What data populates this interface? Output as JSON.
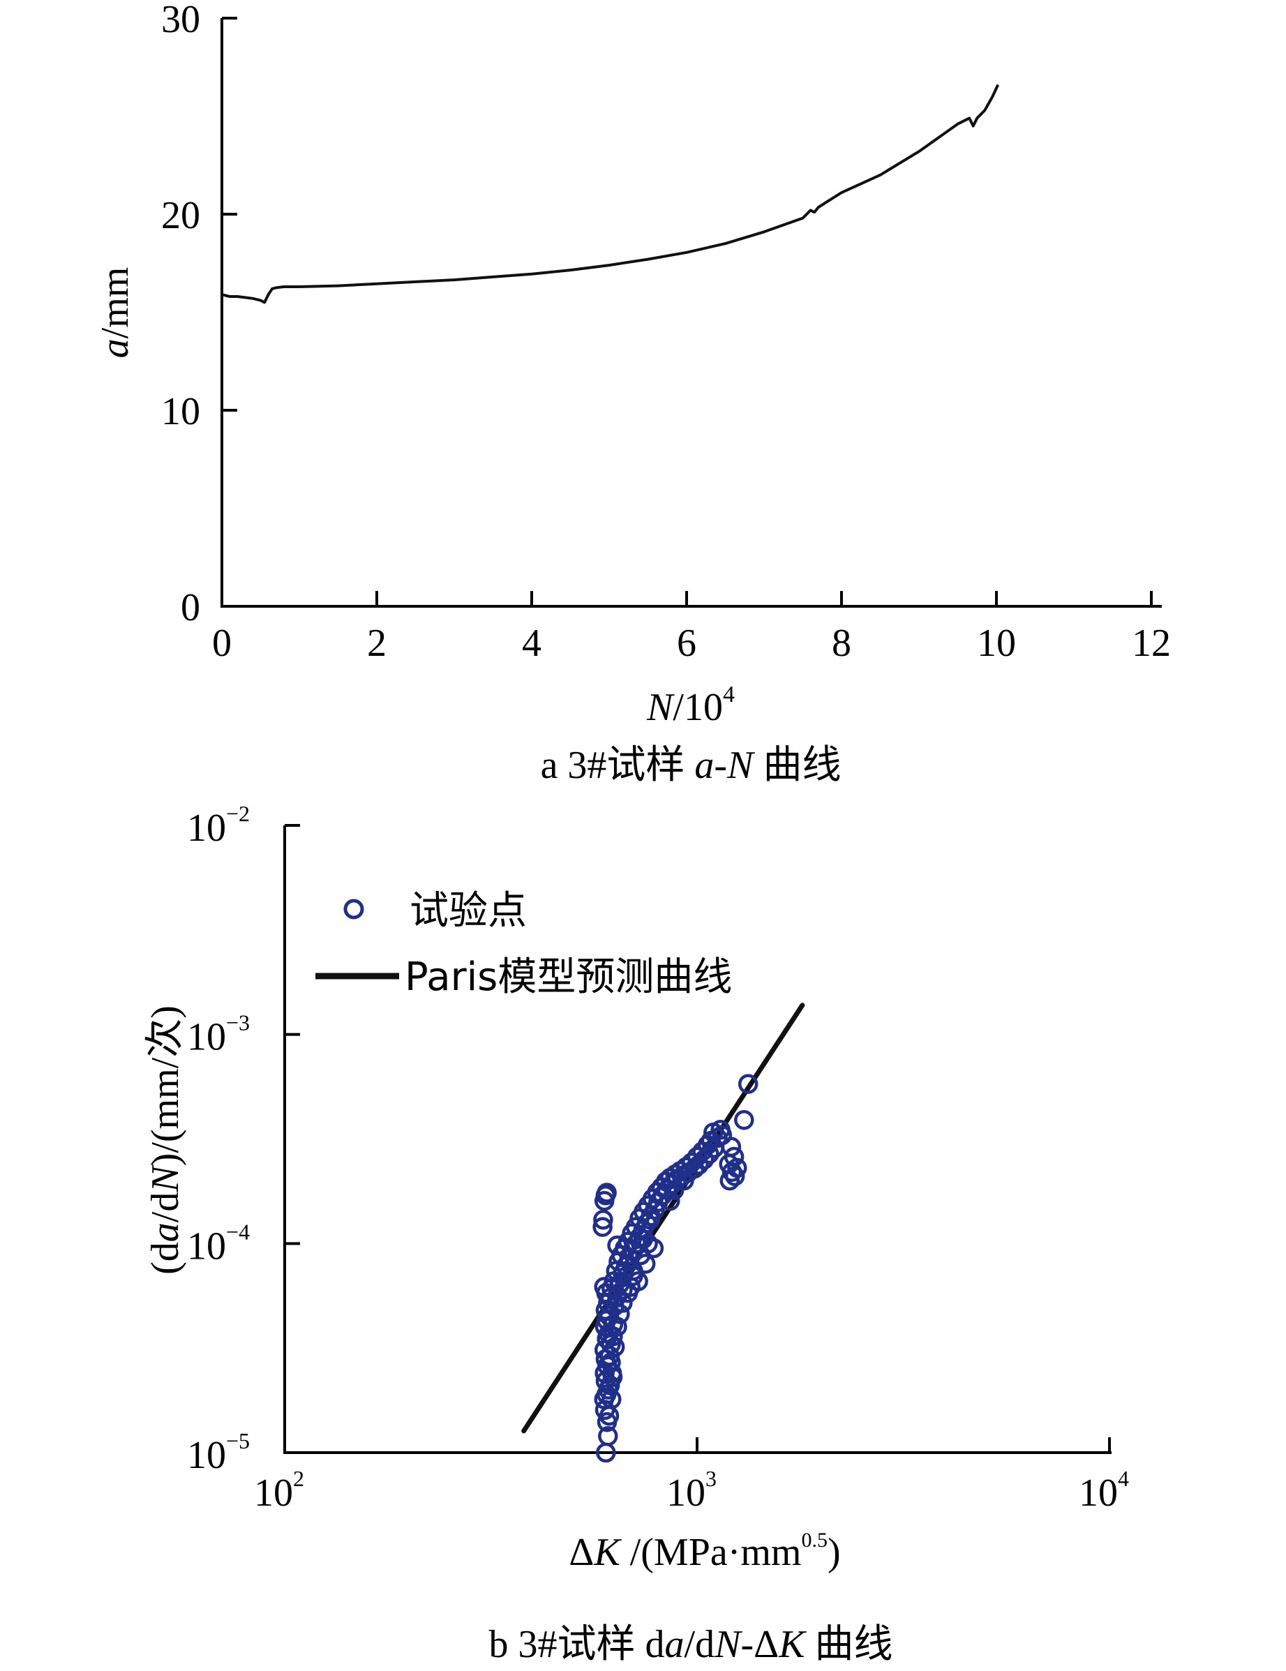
{
  "chart_data": [
    {
      "type": "line",
      "caption": {
        "prefix": "a  3#试样 ",
        "var1": "a",
        "dash": "-",
        "var2": "N",
        "suffix": " 曲线"
      },
      "xlabel": {
        "var": "N",
        "rest": "/10",
        "sup": "4"
      },
      "ylabel": {
        "var": "a",
        "rest": "/mm"
      },
      "xlim": [
        0,
        12
      ],
      "ylim": [
        0,
        30
      ],
      "xticks": [
        0,
        2,
        4,
        6,
        8,
        10,
        12
      ],
      "yticks": [
        0,
        10,
        20,
        30
      ],
      "grid": false,
      "series": [
        {
          "color": "#111111",
          "x": [
            0.0,
            0.1,
            0.2,
            0.3,
            0.4,
            0.5,
            0.55,
            0.6,
            0.65,
            0.7,
            0.8,
            1.0,
            1.5,
            2.0,
            2.5,
            3.0,
            3.5,
            4.0,
            4.5,
            5.0,
            5.5,
            6.0,
            6.5,
            7.0,
            7.5,
            7.6,
            7.65,
            7.7,
            7.8,
            8.0,
            8.5,
            9.0,
            9.5,
            9.65,
            9.7,
            9.75,
            9.85,
            9.95,
            10.02
          ],
          "y": [
            15.9,
            15.8,
            15.8,
            15.75,
            15.7,
            15.6,
            15.5,
            15.9,
            16.2,
            16.25,
            16.3,
            16.3,
            16.35,
            16.45,
            16.55,
            16.65,
            16.8,
            16.95,
            17.15,
            17.4,
            17.7,
            18.05,
            18.5,
            19.1,
            19.8,
            20.2,
            20.1,
            20.35,
            20.6,
            21.1,
            22.0,
            23.2,
            24.6,
            24.9,
            24.5,
            24.9,
            25.3,
            26.0,
            26.6
          ]
        }
      ]
    },
    {
      "type": "scatter",
      "caption": {
        "prefix": "b  3#试样 d",
        "var1": "a",
        "mid": "/d",
        "var2": "N",
        "tail_prefix": "-Δ",
        "var3": "K",
        "suffix": " 曲线"
      },
      "xlabel": {
        "prefix": "Δ",
        "var": "K",
        "rest": " /(MPa·mm",
        "sup": "0.5",
        "close": ")"
      },
      "ylabel": {
        "pre": "(d",
        "var1": "a",
        "mid": "/d",
        "var2": "N",
        "rest": ")/(mm/次)"
      },
      "xscale": "log",
      "yscale": "log",
      "xlim": [
        100,
        10000
      ],
      "ylim": [
        1e-05,
        0.01
      ],
      "xticks": [
        {
          "value": 100,
          "base": "10",
          "exp": "2"
        },
        {
          "value": 1000,
          "base": "10",
          "exp": "3"
        },
        {
          "value": 10000,
          "base": "10",
          "exp": "4"
        }
      ],
      "yticks": [
        {
          "value": 1e-05,
          "base": "10",
          "exp": "−5"
        },
        {
          "value": 0.0001,
          "base": "10",
          "exp": "−4"
        },
        {
          "value": 0.001,
          "base": "10",
          "exp": "−3"
        },
        {
          "value": 0.01,
          "base": "10",
          "exp": "−2"
        }
      ],
      "grid": false,
      "legend_position": "top-left",
      "series": [
        {
          "name": "试验点",
          "marker": "open-circle",
          "color": "#1f2f8a",
          "points": [
            [
              601,
              1e-05
            ],
            [
              608,
              1.2e-05
            ],
            [
              605,
              1.4e-05
            ],
            [
              598,
              1.6e-05
            ],
            [
              612,
              1.5e-05
            ],
            [
              595,
              1.8e-05
            ],
            [
              620,
              1.8e-05
            ],
            [
              603,
              1.9e-05
            ],
            [
              609,
              2e-05
            ],
            [
              600,
              2.2e-05
            ],
            [
              615,
              2.1e-05
            ],
            [
              597,
              2.4e-05
            ],
            [
              622,
              2.4e-05
            ],
            [
              606,
              2.6e-05
            ],
            [
              600,
              2.8e-05
            ],
            [
              614,
              2.9e-05
            ],
            [
              596,
              3.1e-05
            ],
            [
              618,
              3.3e-05
            ],
            [
              604,
              3.5e-05
            ],
            [
              610,
              3.7e-05
            ],
            [
              598,
              4e-05
            ],
            [
              626,
              4.1e-05
            ],
            [
              603,
              4.3e-05
            ],
            [
              612,
              4.5e-05
            ],
            [
              600,
              4.8e-05
            ],
            [
              630,
              5e-05
            ],
            [
              608,
              5.2e-05
            ],
            [
              616,
              5.5e-05
            ],
            [
              602,
              5.8e-05
            ],
            [
              640,
              5.6e-05
            ],
            [
              620,
              6.1e-05
            ],
            [
              595,
              6.2e-05
            ],
            [
              650,
              6.4e-05
            ],
            [
              628,
              6.6e-05
            ],
            [
              660,
              7.2e-05
            ],
            [
              636,
              7.4e-05
            ],
            [
              672,
              7.8e-05
            ],
            [
              645,
              8.2e-05
            ],
            [
              685,
              8.5e-05
            ],
            [
              655,
              8.8e-05
            ],
            [
              700,
              9.3e-05
            ],
            [
              668,
              9.5e-05
            ],
            [
              640,
              9.8e-05
            ],
            [
              712,
              0.0001
            ],
            [
              680,
              0.000102
            ],
            [
              725,
              0.000107
            ],
            [
              695,
              0.000112
            ],
            [
              740,
              0.000116
            ],
            [
              710,
              0.00012
            ],
            [
              755,
              0.000125
            ],
            [
              725,
              0.000132
            ],
            [
              772,
              0.000135
            ],
            [
              742,
              0.000142
            ],
            [
              790,
              0.000145
            ],
            [
              760,
              0.000152
            ],
            [
              805,
              0.000158
            ],
            [
              780,
              0.000164
            ],
            [
              825,
              0.00017
            ],
            [
              800,
              0.000176
            ],
            [
              845,
              0.000181
            ],
            [
              820,
              0.000186
            ],
            [
              870,
              0.000192
            ],
            [
              840,
              0.000198
            ],
            [
              895,
              0.000202
            ],
            [
              860,
              0.000206
            ],
            [
              920,
              0.00021
            ],
            [
              885,
              0.000214
            ],
            [
              950,
              0.000218
            ],
            [
              910,
              0.000222
            ],
            [
              985,
              0.000228
            ],
            [
              940,
              0.000232
            ],
            [
              1010,
              0.000238
            ],
            [
              970,
              0.000244
            ],
            [
              1040,
              0.000252
            ],
            [
              1000,
              0.00026
            ],
            [
              1070,
              0.000268
            ],
            [
              1030,
              0.000276
            ],
            [
              1100,
              0.000286
            ],
            [
              1060,
              0.000296
            ],
            [
              1080,
              0.00031
            ],
            [
              1120,
              0.00032
            ],
            [
              1150,
              0.00033
            ],
            [
              1095,
              0.00034
            ],
            [
              1140,
              0.00035
            ],
            [
              1210,
              0.00029
            ],
            [
              1230,
              0.00026
            ],
            [
              1195,
              0.00024
            ],
            [
              1250,
              0.00023
            ],
            [
              1215,
              0.00022
            ],
            [
              1235,
              0.00021
            ],
            [
              1200,
              0.0002
            ],
            [
              1300,
              0.00039
            ],
            [
              1330,
              0.00058
            ],
            [
              590,
              0.00012
            ],
            [
              592,
              0.00013
            ],
            [
              596,
              0.00016
            ],
            [
              600,
              0.00017
            ],
            [
              604,
              0.000175
            ],
            [
              760,
              0.0001
            ],
            [
              785,
              9.5e-05
            ],
            [
              730,
              8.8e-05
            ],
            [
              750,
              8e-05
            ],
            [
              700,
              7.4e-05
            ],
            [
              720,
              6.6e-05
            ],
            [
              680,
              5.8e-05
            ],
            [
              660,
              5.2e-05
            ],
            [
              690,
              6.2e-05
            ],
            [
              650,
              4.6e-05
            ],
            [
              640,
              4e-05
            ],
            [
              625,
              3.6e-05
            ],
            [
              632,
              3.2e-05
            ],
            [
              618,
              2.7e-05
            ],
            [
              624,
              2.3e-05
            ],
            [
              660,
              6e-05
            ],
            [
              700,
              7e-05
            ],
            [
              740,
              0.000105
            ],
            [
              770,
              0.00013
            ],
            [
              860,
              0.00016
            ],
            [
              880,
              0.00018
            ],
            [
              930,
              0.0002
            ]
          ]
        },
        {
          "name": "Paris模型预测曲线",
          "type": "line",
          "color": "#111111",
          "x": [
            380,
            1800
          ],
          "y": [
            1.27e-05,
            0.00138
          ]
        }
      ]
    }
  ]
}
